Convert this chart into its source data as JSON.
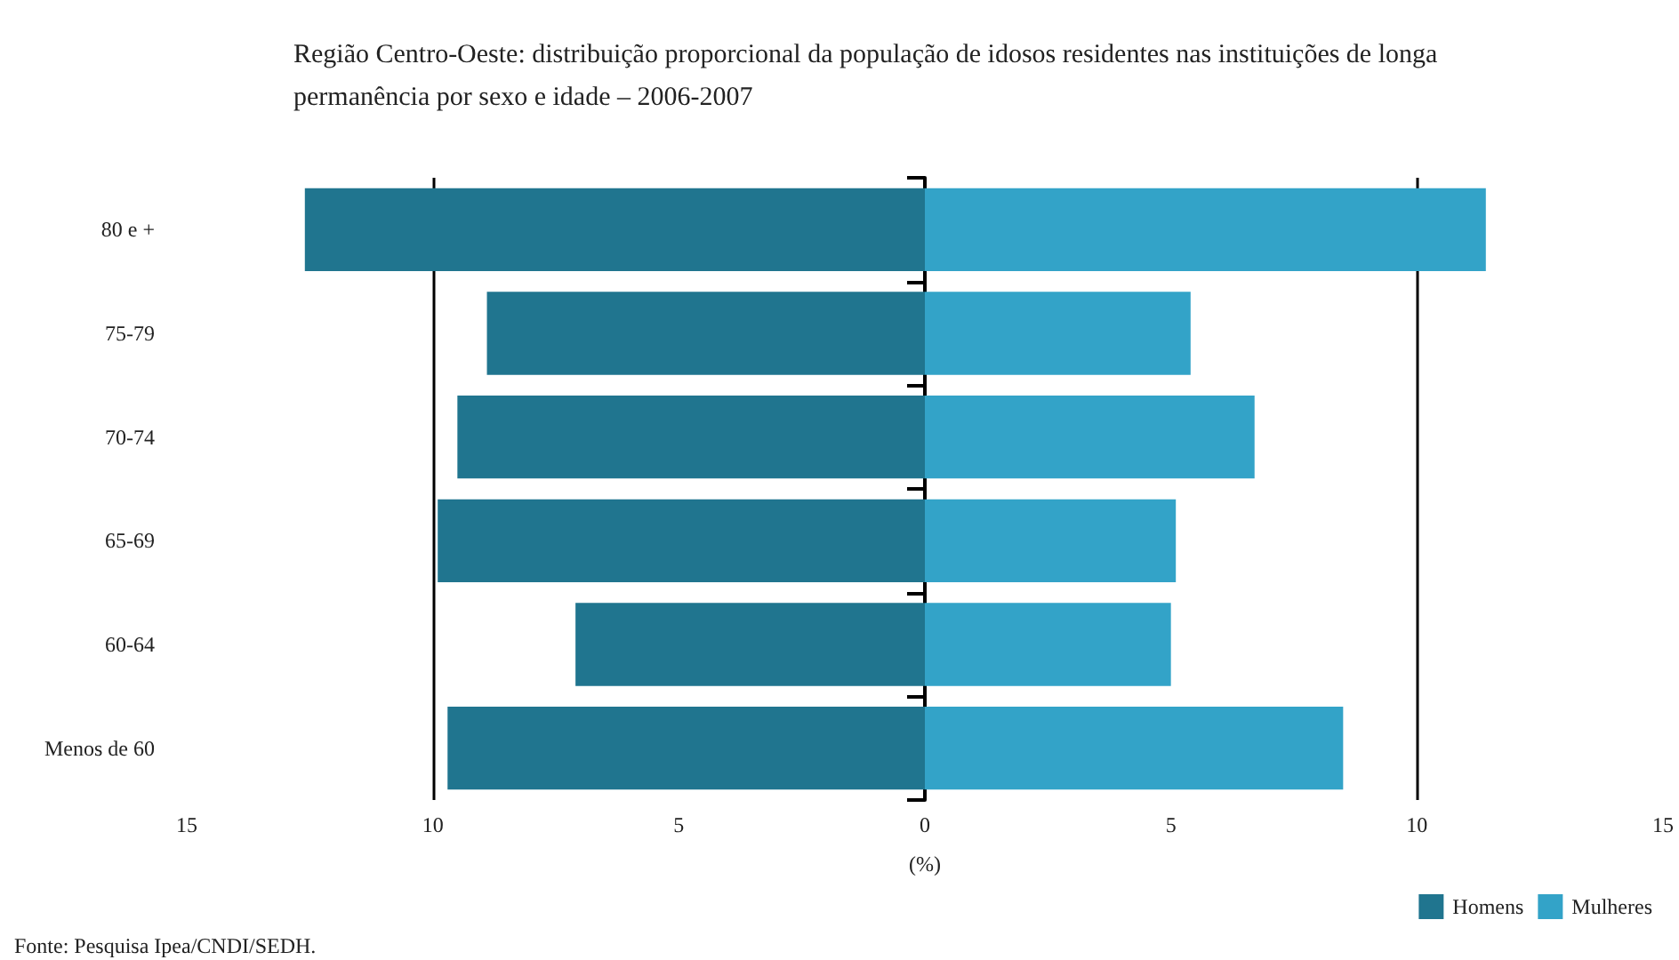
{
  "chart_data": {
    "type": "bar",
    "orientation": "horizontal",
    "stacked": true,
    "title": "Região Centro-Oeste: distribuição proporcional da população de idosos residentes nas instituições de longa permanência por sexo e idade – 2006-2007",
    "xlabel": "(%)",
    "categories": [
      "80 e +",
      "75-79",
      "70-74",
      "65-69",
      "60-64",
      "Menos de 60"
    ],
    "series": [
      {
        "name": "Homens",
        "color": "#20758f",
        "values": [
          -12.6,
          -8.9,
          -9.5,
          -9.9,
          -7.1,
          -9.7
        ]
      },
      {
        "name": "Mulheres",
        "color": "#33a3c8",
        "values": [
          11.4,
          5.4,
          6.7,
          5.1,
          5.0,
          8.5
        ]
      }
    ],
    "xlim": [
      -15,
      15
    ],
    "xticks": [
      {
        "value": -15,
        "label": "15"
      },
      {
        "value": -10,
        "label": "10"
      },
      {
        "value": -5,
        "label": "5"
      },
      0,
      5,
      10,
      15
    ],
    "ref_lines": [
      {
        "axis": "x",
        "value": -10,
        "color": "#000000"
      },
      {
        "axis": "x",
        "value": 10,
        "color": "#000000"
      }
    ],
    "grid": false,
    "legend": "bottom right",
    "annotations": [
      "Fonte: Pesquisa Ipea/CNDI/SEDH."
    ]
  }
}
